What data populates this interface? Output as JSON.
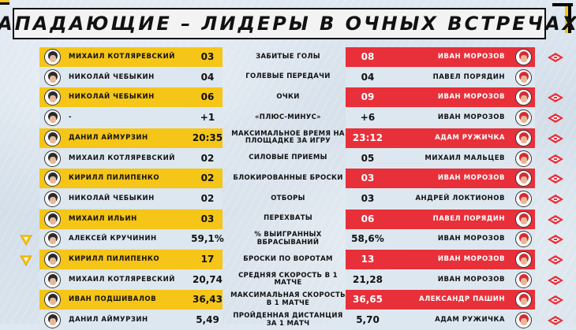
{
  "title": "Нападающие – лидеры в очных встречах",
  "colors": {
    "left_accent": "#f5c518",
    "right_accent": "#e8303a",
    "neutral": "#dde7f0"
  },
  "rows": [
    {
      "left_name": "Михаил Котляревский",
      "left_value": "03",
      "left_hi": true,
      "stat": "Забитые голы",
      "right_value": "08",
      "right_name": "Иван Морозов",
      "right_hi": true,
      "left_logo": false,
      "right_logo": true
    },
    {
      "left_name": "Николай Чебыкин",
      "left_value": "04",
      "left_hi": false,
      "stat": "Голевые передачи",
      "right_value": "04",
      "right_name": "Павел Порядин",
      "right_hi": false,
      "left_logo": false,
      "right_logo": false
    },
    {
      "left_name": "Николай Чебыкин",
      "left_value": "06",
      "left_hi": true,
      "stat": "Очки",
      "right_value": "09",
      "right_name": "Иван Морозов",
      "right_hi": true,
      "left_logo": false,
      "right_logo": true
    },
    {
      "left_name": "-",
      "left_value": "+1",
      "left_hi": false,
      "stat": "«Плюс-минус»",
      "right_value": "+6",
      "right_name": "Иван Морозов",
      "right_hi": false,
      "left_logo": false,
      "right_logo": true
    },
    {
      "left_name": "Данил Аймурзин",
      "left_value": "20:35",
      "left_hi": true,
      "stat": "Максимальное время на площадке за игру",
      "right_value": "23:12",
      "right_name": "Адам Ружичка",
      "right_hi": true,
      "left_logo": false,
      "right_logo": true
    },
    {
      "left_name": "Михаил Котляревский",
      "left_value": "02",
      "left_hi": false,
      "stat": "Силовые приемы",
      "right_value": "05",
      "right_name": "Михаил Мальцев",
      "right_hi": false,
      "left_logo": false,
      "right_logo": true
    },
    {
      "left_name": "Кирилл Пилипенко",
      "left_value": "02",
      "left_hi": true,
      "stat": "Блокированные броски",
      "right_value": "03",
      "right_name": "Иван Морозов",
      "right_hi": true,
      "left_logo": false,
      "right_logo": true
    },
    {
      "left_name": "Николай Чебыкин",
      "left_value": "02",
      "left_hi": false,
      "stat": "Отборы",
      "right_value": "03",
      "right_name": "Андрей Локтионов",
      "right_hi": false,
      "left_logo": false,
      "right_logo": true
    },
    {
      "left_name": "Михаил Ильин",
      "left_value": "03",
      "left_hi": true,
      "stat": "Перехваты",
      "right_value": "06",
      "right_name": "Павел Порядин",
      "right_hi": true,
      "left_logo": false,
      "right_logo": true
    },
    {
      "left_name": "Алексей Кручинин",
      "left_value": "59,1%",
      "left_hi": false,
      "stat": "% выигранных вбрасываний",
      "right_value": "58,6%",
      "right_name": "Иван Морозов",
      "right_hi": false,
      "left_logo": true,
      "right_logo": true
    },
    {
      "left_name": "Кирилл Пилипенко",
      "left_value": "17",
      "left_hi": true,
      "stat": "Броски по воротам",
      "right_value": "13",
      "right_name": "Иван Морозов",
      "right_hi": true,
      "left_logo": true,
      "right_logo": true
    },
    {
      "left_name": "Михаил Котляревский",
      "left_value": "20,74",
      "left_hi": false,
      "stat": "Средняя скорость в 1 матче",
      "right_value": "21,28",
      "right_name": "Иван Морозов",
      "right_hi": false,
      "left_logo": false,
      "right_logo": true
    },
    {
      "left_name": "Иван Подшивалов",
      "left_value": "36,43",
      "left_hi": true,
      "stat": "Максимальная скорость в 1 матче",
      "right_value": "36,65",
      "right_name": "Александр Пашин",
      "right_hi": true,
      "left_logo": false,
      "right_logo": true
    },
    {
      "left_name": "Данил Аймурзин",
      "left_value": "5,49",
      "left_hi": false,
      "stat": "Пройденная дистанция за 1 матч",
      "right_value": "5,70",
      "right_name": "Адам Ружичка",
      "right_hi": false,
      "left_logo": false,
      "right_logo": true
    }
  ]
}
